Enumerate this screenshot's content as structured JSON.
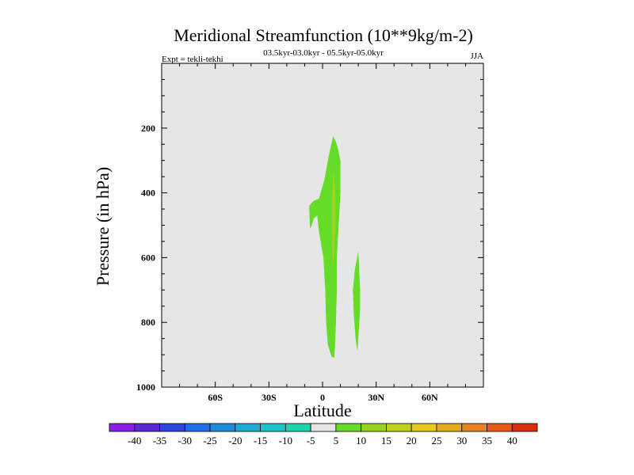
{
  "chart_data": {
    "type": "contour",
    "title": "Meridional Streamfunction (10**9kg/m-2)",
    "subtitle": "03.5kyr-03.0kyr - 05.5kyr-05.0kyr",
    "left_string": "Expt = tekli-tekhi",
    "right_string": "JJA",
    "xlabel": "Latitude",
    "ylabel": "Pressure (in hPa)",
    "xlim": [
      -90,
      90
    ],
    "ylim": [
      1000,
      0
    ],
    "x_ticks": [
      -60,
      -30,
      0,
      30,
      60
    ],
    "x_tick_labels": [
      "60S",
      "30S",
      "0",
      "30N",
      "60N"
    ],
    "y_ticks": [
      200,
      400,
      600,
      800,
      1000
    ],
    "y_tick_labels": [
      "200",
      "400",
      "600",
      "800",
      "1000"
    ],
    "contour_levels": [
      -40,
      -35,
      -30,
      -25,
      -20,
      -15,
      -10,
      -5,
      5,
      10,
      15,
      20,
      25,
      30,
      35,
      40
    ],
    "colorbar_labels": [
      "-40",
      "-35",
      "-30",
      "-25",
      "-20",
      "-15",
      "-10",
      "-5",
      "5",
      "10",
      "15",
      "20",
      "25",
      "30",
      "35",
      "40"
    ],
    "colorbar_colors": [
      "#8c1ee6",
      "#5a28d2",
      "#2d46dc",
      "#1e6ee6",
      "#1e8cdc",
      "#1eaad2",
      "#1ec3c8",
      "#1ed2aa",
      "#e6e6e6",
      "#64dc28",
      "#96d21e",
      "#bed21e",
      "#e6c81e",
      "#e6aa1e",
      "#e6821e",
      "#e65a14",
      "#dc2d0a"
    ],
    "background_color": "#e6e6e6",
    "regions": [
      {
        "name": "upper-cell-5-10",
        "level": "5-10",
        "color": "#64dc28",
        "polygon": [
          [
            6,
            225
          ],
          [
            8,
            250
          ],
          [
            10,
            300
          ],
          [
            10,
            400
          ],
          [
            9,
            500
          ],
          [
            8,
            600
          ],
          [
            8,
            700
          ],
          [
            7.5,
            800
          ],
          [
            7,
            870
          ],
          [
            6.5,
            910
          ],
          [
            5,
            905
          ],
          [
            3,
            870
          ],
          [
            2,
            800
          ],
          [
            1.5,
            700
          ],
          [
            0.5,
            600
          ],
          [
            -2,
            520
          ],
          [
            -3,
            470
          ],
          [
            -5,
            480
          ],
          [
            -6,
            500
          ],
          [
            -7,
            510
          ],
          [
            -7.5,
            440
          ],
          [
            -5,
            425
          ],
          [
            -2,
            418
          ],
          [
            1,
            360
          ],
          [
            3,
            300
          ],
          [
            4.5,
            260
          ]
        ]
      },
      {
        "name": "core-10-15",
        "level": "10-15",
        "color": "#a8d21e",
        "polygon": [
          [
            6,
            330
          ],
          [
            7,
            380
          ],
          [
            7,
            500
          ],
          [
            6.5,
            580
          ],
          [
            6,
            620
          ],
          [
            5.5,
            580
          ],
          [
            5.5,
            420
          ]
        ]
      },
      {
        "name": "lower-cell-5-10",
        "level": "5-10",
        "color": "#64dc28",
        "polygon": [
          [
            20,
            580
          ],
          [
            21,
            700
          ],
          [
            21,
            760
          ],
          [
            20,
            850
          ],
          [
            19.5,
            890
          ],
          [
            18.5,
            850
          ],
          [
            17.5,
            780
          ],
          [
            17,
            700
          ],
          [
            18,
            640
          ]
        ]
      }
    ]
  }
}
